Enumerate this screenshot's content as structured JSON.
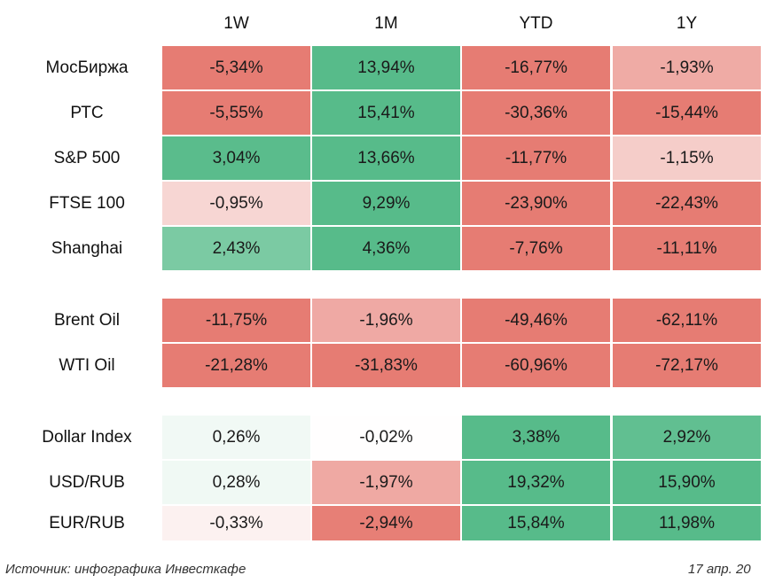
{
  "chart_data": {
    "type": "heatmap",
    "columns": [
      "1W",
      "1M",
      "YTD",
      "1Y"
    ],
    "groups": [
      {
        "rows": [
          {
            "label": "МосБиржа",
            "values": [
              "-5,34%",
              "13,94%",
              "-16,77%",
              "-1,93%"
            ]
          },
          {
            "label": "РТС",
            "values": [
              "-5,55%",
              "15,41%",
              "-30,36%",
              "-15,44%"
            ]
          },
          {
            "label": "S&P 500",
            "values": [
              "3,04%",
              "13,66%",
              "-11,77%",
              "-1,15%"
            ]
          },
          {
            "label": "FTSE 100",
            "values": [
              "-0,95%",
              "9,29%",
              "-23,90%",
              "-22,43%"
            ]
          },
          {
            "label": "Shanghai",
            "values": [
              "2,43%",
              "4,36%",
              "-7,76%",
              "-11,11%"
            ]
          }
        ]
      },
      {
        "rows": [
          {
            "label": "Brent Oil",
            "values": [
              "-11,75%",
              "-1,96%",
              "-49,46%",
              "-62,11%"
            ]
          },
          {
            "label": "WTI Oil",
            "values": [
              "-21,28%",
              "-31,83%",
              "-60,96%",
              "-72,17%"
            ]
          }
        ]
      },
      {
        "rows": [
          {
            "label": "Dollar Index",
            "values": [
              "0,26%",
              "-0,02%",
              "3,38%",
              "2,92%"
            ]
          },
          {
            "label": "USD/RUB",
            "values": [
              "0,28%",
              "-1,97%",
              "19,32%",
              "15,90%"
            ]
          },
          {
            "label": "EUR/RUB",
            "values": [
              "-0,33%",
              "-2,94%",
              "15,84%",
              "11,98%"
            ]
          }
        ]
      }
    ],
    "colors": {
      "positive": "#57bb8a",
      "negative": "#e67c73",
      "neutral": "#ffffff"
    }
  },
  "footer": {
    "source": "Источник: инфографика Инвесткафе",
    "date": "17 апр. 20"
  }
}
